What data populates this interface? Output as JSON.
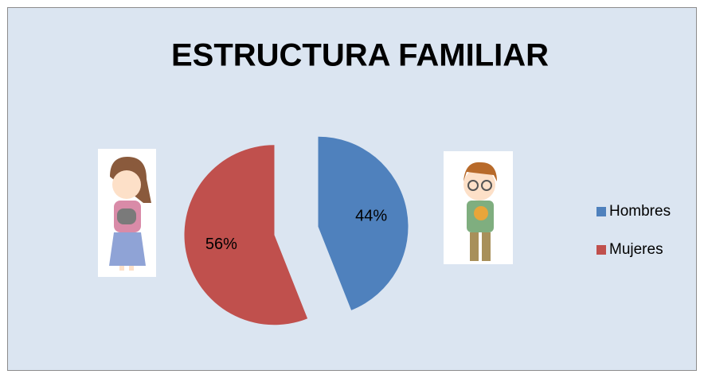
{
  "chart_data": {
    "type": "pie",
    "title": "ESTRUCTURA FAMILIAR",
    "categories": [
      "Hombres",
      "Mujeres"
    ],
    "values": [
      44,
      56
    ],
    "value_labels": [
      "44%",
      "56%"
    ],
    "colors": [
      "#4f81bd",
      "#c0504d"
    ],
    "legend": "right"
  }
}
